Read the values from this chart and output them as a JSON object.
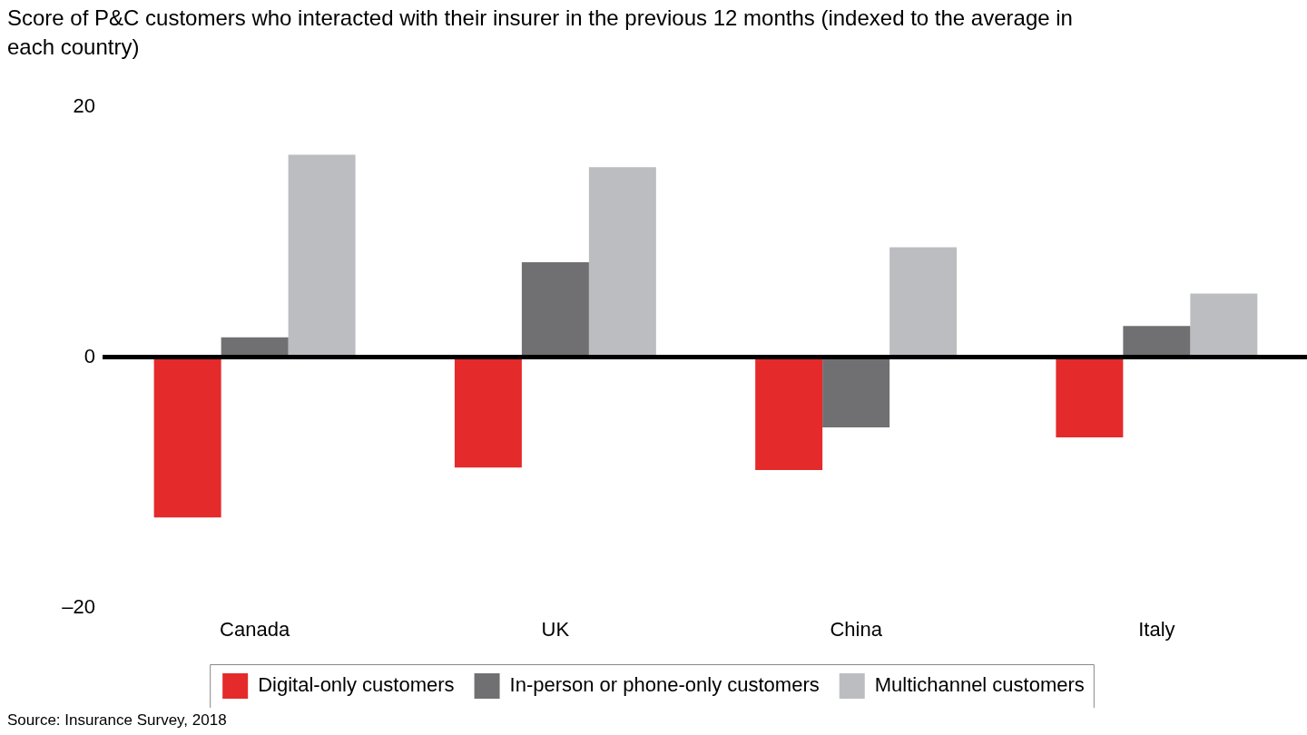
{
  "chart_data": {
    "type": "bar",
    "title": "Score of P&C customers who interacted with their insurer in the previous 12 months (indexed to the average in each country)",
    "categories": [
      "Canada",
      "UK",
      "China",
      "Italy"
    ],
    "series": [
      {
        "name": "Digital-only customers",
        "color": "#e42a2a",
        "values": [
          -12.8,
          -8.8,
          -9.0,
          -6.4
        ]
      },
      {
        "name": "In-person or phone-only customers",
        "color": "#707073",
        "values": [
          1.6,
          7.6,
          -5.6,
          2.5
        ]
      },
      {
        "name": "Multichannel customers",
        "color": "#bcbdc0",
        "values": [
          16.2,
          15.2,
          8.8,
          5.1
        ]
      }
    ],
    "ylim": [
      -20,
      20
    ],
    "yticks": [
      {
        "value": -20,
        "label": "–20"
      },
      0,
      20
    ],
    "legend": "bottom",
    "annotations": [
      "Source: Insurance Survey, 2018"
    ]
  }
}
